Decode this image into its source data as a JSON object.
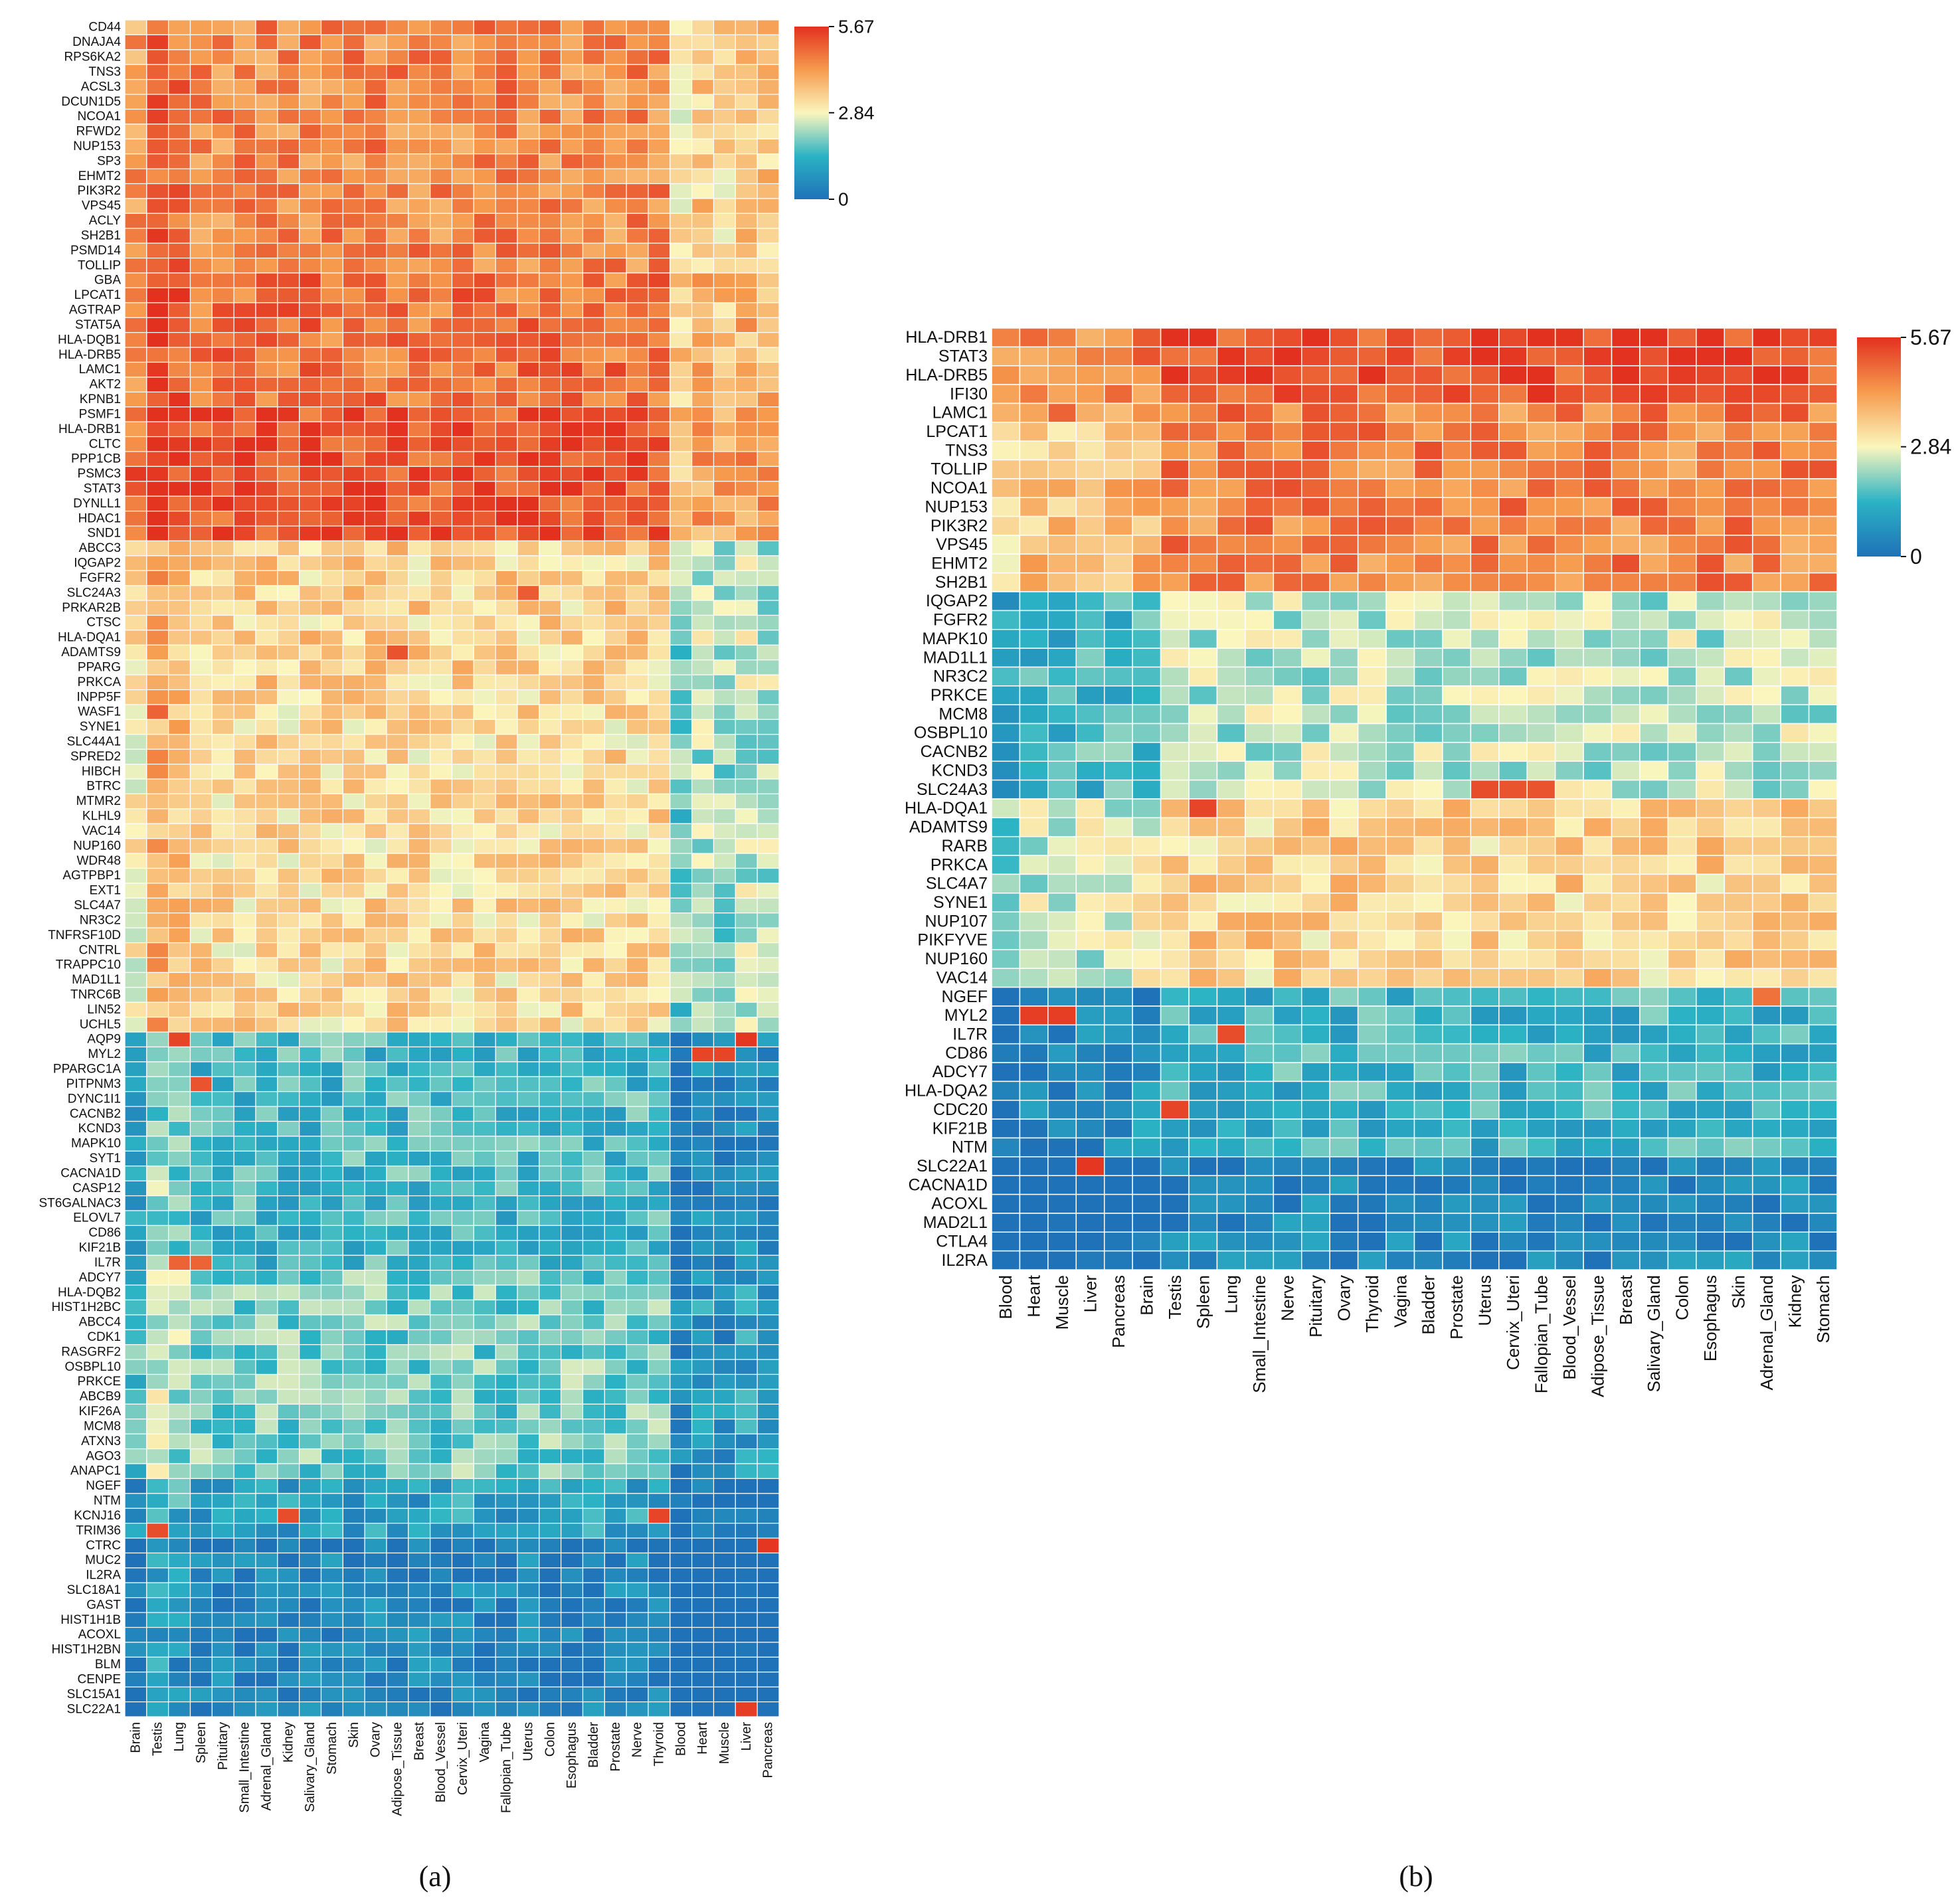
{
  "figure": {
    "caption_a": "(a)",
    "caption_b": "(b)"
  },
  "colors": {
    "low": "#1f72b8",
    "mid": "#fbf6bd",
    "high": "#e3311f"
  },
  "chart_data": [
    {
      "type": "heatmap",
      "panel": "a",
      "title": "",
      "xlabel": "",
      "ylabel": "",
      "zlim": [
        0,
        5.67
      ],
      "colorbar_ticks": [
        "5.67",
        "2.84",
        "0"
      ],
      "colorbar_tick_values": [
        5.67,
        2.84,
        0
      ],
      "rows": [
        "CD44",
        "DNAJA4",
        "RPS6KA2",
        "TNS3",
        "ACSL3",
        "DCUN1D5",
        "NCOA1",
        "RFWD2",
        "NUP153",
        "SP3",
        "EHMT2",
        "PIK3R2",
        "VPS45",
        "ACLY",
        "SH2B1",
        "PSMD14",
        "TOLLIP",
        "GBA",
        "LPCAT1",
        "AGTRAP",
        "STAT5A",
        "HLA-DQB1",
        "HLA-DRB5",
        "LAMC1",
        "AKT2",
        "KPNB1",
        "PSMF1",
        "HLA-DRB1",
        "CLTC",
        "PPP1CB",
        "PSMC3",
        "STAT3",
        "DYNLL1",
        "HDAC1",
        "SND1",
        "ABCC3",
        "IQGAP2",
        "FGFR2",
        "SLC24A3",
        "PRKAR2B",
        "CTSC",
        "HLA-DQA1",
        "ADAMTS9",
        "PPARG",
        "PRKCA",
        "INPP5F",
        "WASF1",
        "SYNE1",
        "SLC44A1",
        "SPRED2",
        "HIBCH",
        "BTRC",
        "MTMR2",
        "KLHL9",
        "VAC14",
        "NUP160",
        "WDR48",
        "AGTPBP1",
        "EXT1",
        "SLC4A7",
        "NR3C2",
        "TNFRSF10D",
        "CNTRL",
        "TRAPPC10",
        "MAD1L1",
        "TNRC6B",
        "LIN52",
        "UCHL5",
        "AQP9",
        "MYL2",
        "PPARGC1A",
        "PITPNM3",
        "DYNC1I1",
        "CACNB2",
        "KCND3",
        "MAPK10",
        "SYT1",
        "CACNA1D",
        "CASP12",
        "ST6GALNAC3",
        "ELOVL7",
        "CD86",
        "KIF21B",
        "IL7R",
        "ADCY7",
        "HLA-DQB2",
        "HIST1H2BC",
        "ABCC4",
        "CDK1",
        "RASGRF2",
        "OSBPL10",
        "PRKCE",
        "ABCB9",
        "KIF26A",
        "MCM8",
        "ATXN3",
        "AGO3",
        "ANAPC1",
        "NGEF",
        "NTM",
        "KCNJ16",
        "TRIM36",
        "CTRC",
        "MUC2",
        "IL2RA",
        "SLC18A1",
        "GAST",
        "HIST1H1B",
        "ACOXL",
        "HIST1H2BN",
        "BLM",
        "CENPE",
        "SLC15A1",
        "SLC22A1"
      ],
      "columns": [
        "Brain",
        "Testis",
        "Lung",
        "Spleen",
        "Pituitary",
        "Small_Intestine",
        "Adrenal_Gland",
        "Kidney",
        "Salivary_Gland",
        "Stomach",
        "Skin",
        "Ovary",
        "Adipose_Tissue",
        "Breast",
        "Blood_Vessel",
        "Cervix_Uteri",
        "Vagina",
        "Fallopian_Tube",
        "Uterus",
        "Colon",
        "Esophagus",
        "Bladder",
        "Prostate",
        "Nerve",
        "Thyroid",
        "Blood",
        "Heart",
        "Muscle",
        "Liver",
        "Pancreas"
      ],
      "row_block_levels": [
        {
          "rows": [
            0,
            17
          ],
          "mean": 4.5
        },
        {
          "rows": [
            17,
            26
          ],
          "mean": 4.8
        },
        {
          "rows": [
            26,
            35
          ],
          "mean": 5.2
        },
        {
          "rows": [
            35,
            45
          ],
          "mean": 3.4
        },
        {
          "rows": [
            45,
            68
          ],
          "mean": 3.3
        },
        {
          "rows": [
            68,
            84
          ],
          "mean": 1.5
        },
        {
          "rows": [
            84,
            98
          ],
          "mean": 1.9
        },
        {
          "rows": [
            98,
            102
          ],
          "mean": 1.0
        },
        {
          "rows": [
            102,
            114
          ],
          "mean": 0.4
        }
      ],
      "column_group_offsets": {
        "Brain": -0.3,
        "Testis": 0.6,
        "Lung": 0.3,
        "Blood": -1.4,
        "Heart": -1.0,
        "Muscle": -1.2,
        "Liver": -0.9,
        "Pancreas": -1.0
      },
      "highlights": [
        {
          "row": "DNAJA4",
          "column": "Testis",
          "value": 5.5
        },
        {
          "row": "AQP9",
          "column": "Lung",
          "value": 5.4
        },
        {
          "row": "AQP9",
          "column": "Liver",
          "value": 5.6
        },
        {
          "row": "MYL2",
          "column": "Heart",
          "value": 5.4
        },
        {
          "row": "MYL2",
          "column": "Muscle",
          "value": 5.4
        },
        {
          "row": "PITPNM3",
          "column": "Spleen",
          "value": 5.2
        },
        {
          "row": "IL7R",
          "column": "Lung",
          "value": 5.0
        },
        {
          "row": "IL7R",
          "column": "Spleen",
          "value": 5.0
        },
        {
          "row": "KCNJ16",
          "column": "Kidney",
          "value": 5.3
        },
        {
          "row": "KCNJ16",
          "column": "Thyroid",
          "value": 5.4
        },
        {
          "row": "TRIM36",
          "column": "Testis",
          "value": 5.3
        },
        {
          "row": "CTRC",
          "column": "Pancreas",
          "value": 5.6
        },
        {
          "row": "SLC22A1",
          "column": "Liver",
          "value": 5.5
        },
        {
          "row": "WASF1",
          "column": "Testis",
          "value": 5.0
        },
        {
          "row": "ADAMTS9",
          "column": "Adipose_Tissue",
          "value": 5.2
        },
        {
          "row": "SLC24A3",
          "column": "Uterus",
          "value": 5.1
        }
      ]
    },
    {
      "type": "heatmap",
      "panel": "b",
      "title": "",
      "xlabel": "",
      "ylabel": "",
      "zlim": [
        0,
        5.67
      ],
      "colorbar_ticks": [
        "5.67",
        "2.84",
        "0"
      ],
      "colorbar_tick_values": [
        5.67,
        2.84,
        0
      ],
      "rows": [
        "HLA-DRB1",
        "STAT3",
        "HLA-DRB5",
        "IFI30",
        "LAMC1",
        "LPCAT1",
        "TNS3",
        "TOLLIP",
        "NCOA1",
        "NUP153",
        "PIK3R2",
        "VPS45",
        "EHMT2",
        "SH2B1",
        "IQGAP2",
        "FGFR2",
        "MAPK10",
        "MAD1L1",
        "NR3C2",
        "PRKCE",
        "MCM8",
        "OSBPL10",
        "CACNB2",
        "KCND3",
        "SLC24A3",
        "HLA-DQA1",
        "ADAMTS9",
        "RARB",
        "PRKCA",
        "SLC4A7",
        "SYNE1",
        "NUP107",
        "PIKFYVE",
        "NUP160",
        "VAC14",
        "NGEF",
        "MYL2",
        "IL7R",
        "CD86",
        "ADCY7",
        "HLA-DQA2",
        "CDC20",
        "KIF21B",
        "NTM",
        "SLC22A1",
        "CACNA1D",
        "ACOXL",
        "MAD2L1",
        "CTLA4",
        "IL2RA"
      ],
      "columns": [
        "Blood",
        "Heart",
        "Muscle",
        "Liver",
        "Pancreas",
        "Brain",
        "Testis",
        "Spleen",
        "Lung",
        "Small_Intestine",
        "Nerve",
        "Pituitary",
        "Ovary",
        "Thyroid",
        "Vagina",
        "Bladder",
        "Prostate",
        "Uterus",
        "Cervix_Uteri",
        "Fallopian_Tube",
        "Blood_Vessel",
        "Adipose_Tissue",
        "Breast",
        "Salivary_Gland",
        "Colon",
        "Esophagus",
        "Skin",
        "Adrenal_Gland",
        "Kidney",
        "Stomach"
      ],
      "row_block_levels": [
        {
          "rows": [
            0,
            4
          ],
          "mean": 5.3
        },
        {
          "rows": [
            4,
            14
          ],
          "mean": 4.6
        },
        {
          "rows": [
            14,
            25
          ],
          "mean": 2.4
        },
        {
          "rows": [
            25,
            35
          ],
          "mean": 3.4
        },
        {
          "rows": [
            35,
            44
          ],
          "mean": 1.4
        },
        {
          "rows": [
            44,
            50
          ],
          "mean": 0.5
        }
      ],
      "column_group_offsets": {
        "Blood": -1.3,
        "Heart": -1.0,
        "Muscle": -1.1,
        "Liver": -0.9,
        "Pancreas": -0.8,
        "Brain": -0.7
      },
      "highlights": [
        {
          "row": "MYL2",
          "column": "Heart",
          "value": 5.5
        },
        {
          "row": "MYL2",
          "column": "Muscle",
          "value": 5.5
        },
        {
          "row": "SLC22A1",
          "column": "Liver",
          "value": 5.6
        },
        {
          "row": "CDC20",
          "column": "Testis",
          "value": 5.4
        },
        {
          "row": "IL7R",
          "column": "Lung",
          "value": 5.3
        },
        {
          "row": "HLA-DQA1",
          "column": "Spleen",
          "value": 5.4
        },
        {
          "row": "SLC24A3",
          "column": "Uterus",
          "value": 5.3
        },
        {
          "row": "SLC24A3",
          "column": "Cervix_Uteri",
          "value": 5.2
        },
        {
          "row": "SLC24A3",
          "column": "Fallopian_Tube",
          "value": 5.2
        },
        {
          "row": "NGEF",
          "column": "Adrenal_Gland",
          "value": 4.8
        },
        {
          "row": "LAMC1",
          "column": "Muscle",
          "value": 5.0
        }
      ]
    }
  ]
}
